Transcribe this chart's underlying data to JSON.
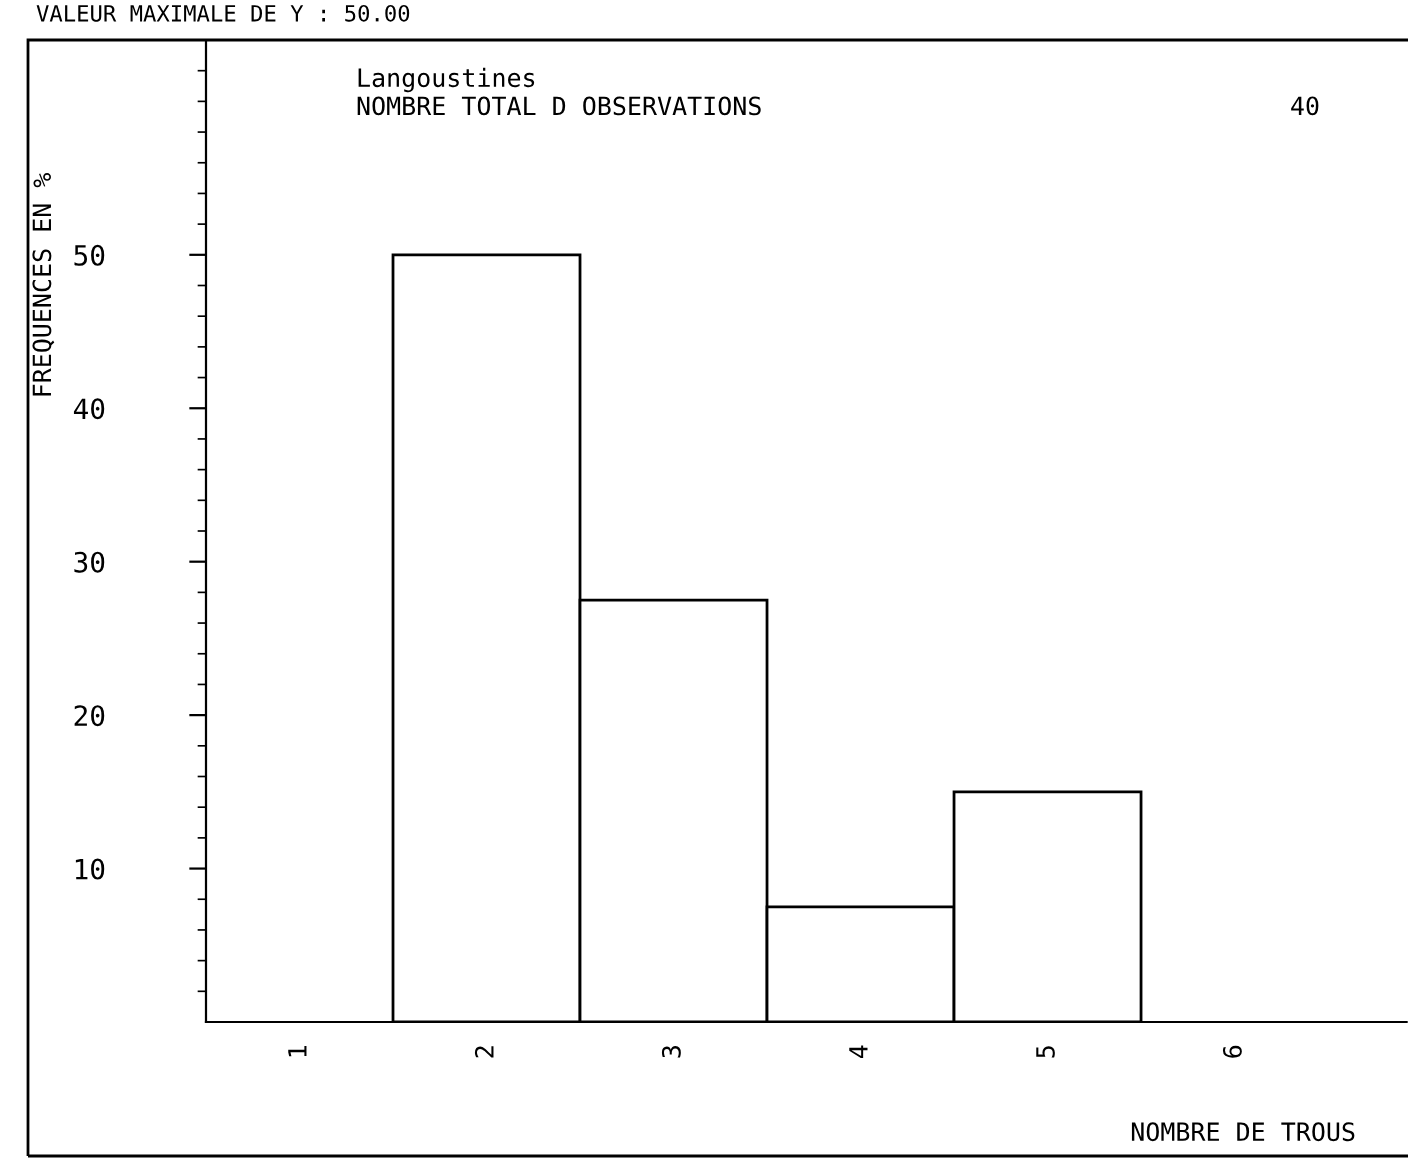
{
  "chart_data": {
    "type": "bar",
    "title": "Langoustines",
    "subtitle": "VALEUR MAXIMALE DE Y : 50.00",
    "annotations": [
      "NOMBRE TOTAL D OBSERVATIONS",
      "40"
    ],
    "xlabel": "NOMBRE DE TROUS",
    "ylabel": "FREQUENCES EN %",
    "categories": [
      "1",
      "2",
      "3",
      "4",
      "5",
      "6"
    ],
    "values": [
      0,
      50,
      27.5,
      7.5,
      15,
      0
    ],
    "color": "#ffffff",
    "ylim": [
      0,
      64
    ],
    "yticks": [
      10,
      20,
      30,
      40,
      50
    ],
    "grid": false
  }
}
